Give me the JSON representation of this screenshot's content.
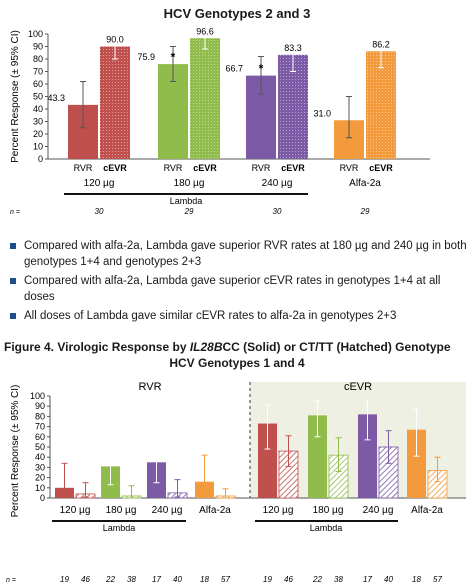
{
  "top": {
    "title": "HCV Genotypes 2 and 3",
    "ylabel": "Percent Response (± 95% CI)",
    "n_prefix": "n =",
    "lambda_label": "Lambda"
  },
  "bullets": [
    "Compared with alfa-2a, Lambda gave superior RVR rates at 180 µg and 240 µg in both genotypes 1+4 and genotypes 2+3",
    "Compared with alfa-2a, Lambda gave superior cEVR rates in genotypes 1+4 at all doses",
    "All doses of Lambda gave similar cEVR rates to alfa-2a in genotypes 2+3"
  ],
  "figure": {
    "title_prefix": "Figure 4. Virologic Response by ",
    "title_gene": "IL28B",
    "title_suffix": "CC (Solid) or CT/TT (Hatched) Genotype",
    "title_line2": "HCV Genotypes 1 and 4"
  },
  "chart_data": [
    {
      "type": "bar",
      "title": "HCV Genotypes 2 and 3",
      "ylabel": "Percent Response (± 95% CI)",
      "ylim": [
        0,
        100
      ],
      "yticks": [
        0,
        10,
        20,
        30,
        40,
        50,
        60,
        70,
        80,
        90,
        100
      ],
      "groups": [
        "120 µg",
        "180 µg",
        "240 µg",
        "Alfa-2a"
      ],
      "bar_labels": [
        "RVR",
        "cEVR"
      ],
      "n": [
        "30",
        "29",
        "30",
        "29"
      ],
      "series": [
        {
          "name": "RVR",
          "values": [
            43.3,
            75.9,
            66.7,
            31.0
          ],
          "ci_low": [
            25,
            62,
            52,
            17
          ],
          "ci_high": [
            62,
            90,
            82,
            50
          ]
        },
        {
          "name": "cEVR",
          "values": [
            90.0,
            96.6,
            83.3,
            86.2
          ],
          "ci_low": [
            80,
            88,
            70,
            73
          ],
          "ci_high": [
            98,
            100,
            94,
            96
          ]
        }
      ],
      "value_labels_rvr": [
        "43.3",
        "75.9",
        "66.7",
        "31.0"
      ],
      "value_labels_cevr": [
        "90.0",
        "96.6",
        "83.3",
        "86.2"
      ],
      "markers": [
        {
          "group": "180 µg",
          "label": "*"
        },
        {
          "group": "240 µg",
          "label": "*"
        }
      ],
      "colors": [
        "#c0504d",
        "#8fbc4a",
        "#7c5aa5",
        "#f39a3c"
      ]
    },
    {
      "type": "bar",
      "ylabel": "Percent Response (± 95% CI)",
      "ylim": [
        0,
        100
      ],
      "yticks": [
        0,
        10,
        20,
        30,
        40,
        50,
        60,
        70,
        80,
        90,
        100
      ],
      "sections": [
        "RVR",
        "cEVR"
      ],
      "groups": [
        "120 µg",
        "180 µg",
        "240 µg",
        "Alfa-2a"
      ],
      "legend": [
        "CC (Solid)",
        "CT/TT (Hatched)"
      ],
      "n_rvr": [
        [
          "19",
          "46"
        ],
        [
          "22",
          "38"
        ],
        [
          "17",
          "40"
        ],
        [
          "18",
          "57"
        ]
      ],
      "n_cevr": [
        [
          "19",
          "46"
        ],
        [
          "22",
          "38"
        ],
        [
          "17",
          "40"
        ],
        [
          "18",
          "57"
        ]
      ],
      "rvr": {
        "cc": [
          10,
          31,
          35,
          16
        ],
        "cc_ci": [
          [
            2,
            34
          ],
          [
            13,
            55
          ],
          [
            15,
            62
          ],
          [
            5,
            42
          ]
        ],
        "ct": [
          4,
          2,
          5,
          2
        ],
        "ct_ci": [
          [
            1,
            15
          ],
          [
            0,
            12
          ],
          [
            1,
            18
          ],
          [
            0,
            9
          ]
        ]
      },
      "cevr": {
        "cc": [
          73,
          81,
          82,
          67
        ],
        "cc_ci": [
          [
            48,
            91
          ],
          [
            60,
            95
          ],
          [
            57,
            96
          ],
          [
            41,
            87
          ]
        ],
        "ct": [
          46,
          42,
          50,
          27
        ],
        "ct_ci": [
          [
            31,
            61
          ],
          [
            26,
            59
          ],
          [
            34,
            66
          ],
          [
            16,
            40
          ]
        ]
      },
      "colors": [
        "#c0504d",
        "#8fbc4a",
        "#7c5aa5",
        "#f39a3c"
      ],
      "shaded_section_color": "#eef0e4"
    }
  ]
}
